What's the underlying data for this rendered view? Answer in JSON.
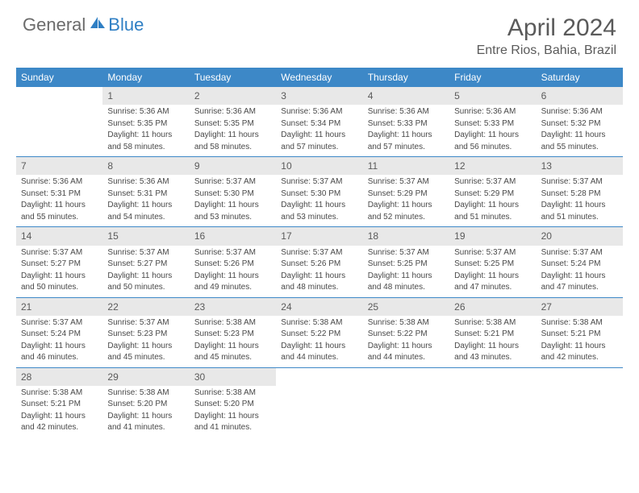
{
  "logo": {
    "general": "General",
    "blue": "Blue"
  },
  "title": "April 2024",
  "location": "Entre Rios, Bahia, Brazil",
  "weekdays": [
    "Sunday",
    "Monday",
    "Tuesday",
    "Wednesday",
    "Thursday",
    "Friday",
    "Saturday"
  ],
  "colors": {
    "header_bar": "#3d88c7",
    "day_header_bg": "#e8e8e8",
    "text": "#484848",
    "title_text": "#5a5a5a",
    "logo_gray": "#6b6b6b",
    "logo_blue": "#2f7fc4"
  },
  "layout": {
    "cols": 7,
    "rows": 5,
    "first_weekday_offset": 1
  },
  "days": [
    {
      "n": 1,
      "sunrise": "5:36 AM",
      "sunset": "5:35 PM",
      "dh": 11,
      "dm": 58
    },
    {
      "n": 2,
      "sunrise": "5:36 AM",
      "sunset": "5:35 PM",
      "dh": 11,
      "dm": 58
    },
    {
      "n": 3,
      "sunrise": "5:36 AM",
      "sunset": "5:34 PM",
      "dh": 11,
      "dm": 57
    },
    {
      "n": 4,
      "sunrise": "5:36 AM",
      "sunset": "5:33 PM",
      "dh": 11,
      "dm": 57
    },
    {
      "n": 5,
      "sunrise": "5:36 AM",
      "sunset": "5:33 PM",
      "dh": 11,
      "dm": 56
    },
    {
      "n": 6,
      "sunrise": "5:36 AM",
      "sunset": "5:32 PM",
      "dh": 11,
      "dm": 55
    },
    {
      "n": 7,
      "sunrise": "5:36 AM",
      "sunset": "5:31 PM",
      "dh": 11,
      "dm": 55
    },
    {
      "n": 8,
      "sunrise": "5:36 AM",
      "sunset": "5:31 PM",
      "dh": 11,
      "dm": 54
    },
    {
      "n": 9,
      "sunrise": "5:37 AM",
      "sunset": "5:30 PM",
      "dh": 11,
      "dm": 53
    },
    {
      "n": 10,
      "sunrise": "5:37 AM",
      "sunset": "5:30 PM",
      "dh": 11,
      "dm": 53
    },
    {
      "n": 11,
      "sunrise": "5:37 AM",
      "sunset": "5:29 PM",
      "dh": 11,
      "dm": 52
    },
    {
      "n": 12,
      "sunrise": "5:37 AM",
      "sunset": "5:29 PM",
      "dh": 11,
      "dm": 51
    },
    {
      "n": 13,
      "sunrise": "5:37 AM",
      "sunset": "5:28 PM",
      "dh": 11,
      "dm": 51
    },
    {
      "n": 14,
      "sunrise": "5:37 AM",
      "sunset": "5:27 PM",
      "dh": 11,
      "dm": 50
    },
    {
      "n": 15,
      "sunrise": "5:37 AM",
      "sunset": "5:27 PM",
      "dh": 11,
      "dm": 50
    },
    {
      "n": 16,
      "sunrise": "5:37 AM",
      "sunset": "5:26 PM",
      "dh": 11,
      "dm": 49
    },
    {
      "n": 17,
      "sunrise": "5:37 AM",
      "sunset": "5:26 PM",
      "dh": 11,
      "dm": 48
    },
    {
      "n": 18,
      "sunrise": "5:37 AM",
      "sunset": "5:25 PM",
      "dh": 11,
      "dm": 48
    },
    {
      "n": 19,
      "sunrise": "5:37 AM",
      "sunset": "5:25 PM",
      "dh": 11,
      "dm": 47
    },
    {
      "n": 20,
      "sunrise": "5:37 AM",
      "sunset": "5:24 PM",
      "dh": 11,
      "dm": 47
    },
    {
      "n": 21,
      "sunrise": "5:37 AM",
      "sunset": "5:24 PM",
      "dh": 11,
      "dm": 46
    },
    {
      "n": 22,
      "sunrise": "5:37 AM",
      "sunset": "5:23 PM",
      "dh": 11,
      "dm": 45
    },
    {
      "n": 23,
      "sunrise": "5:38 AM",
      "sunset": "5:23 PM",
      "dh": 11,
      "dm": 45
    },
    {
      "n": 24,
      "sunrise": "5:38 AM",
      "sunset": "5:22 PM",
      "dh": 11,
      "dm": 44
    },
    {
      "n": 25,
      "sunrise": "5:38 AM",
      "sunset": "5:22 PM",
      "dh": 11,
      "dm": 44
    },
    {
      "n": 26,
      "sunrise": "5:38 AM",
      "sunset": "5:21 PM",
      "dh": 11,
      "dm": 43
    },
    {
      "n": 27,
      "sunrise": "5:38 AM",
      "sunset": "5:21 PM",
      "dh": 11,
      "dm": 42
    },
    {
      "n": 28,
      "sunrise": "5:38 AM",
      "sunset": "5:21 PM",
      "dh": 11,
      "dm": 42
    },
    {
      "n": 29,
      "sunrise": "5:38 AM",
      "sunset": "5:20 PM",
      "dh": 11,
      "dm": 41
    },
    {
      "n": 30,
      "sunrise": "5:38 AM",
      "sunset": "5:20 PM",
      "dh": 11,
      "dm": 41
    }
  ],
  "labels": {
    "sunrise_prefix": "Sunrise: ",
    "sunset_prefix": "Sunset: ",
    "daylight_prefix": "Daylight: ",
    "hours_word": " hours",
    "and_word": "and ",
    "minutes_word": " minutes."
  }
}
